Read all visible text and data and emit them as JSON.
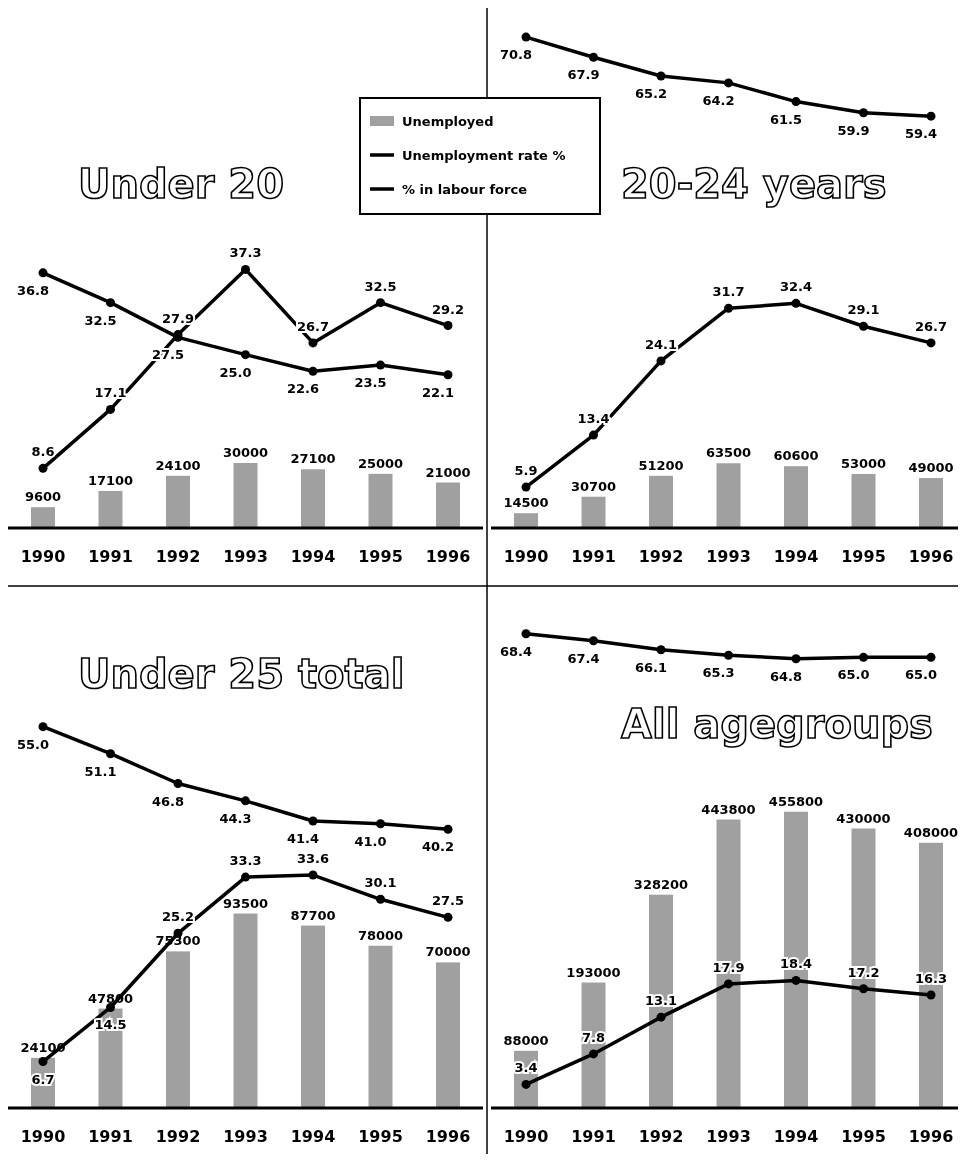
{
  "chart_data": [
    {
      "type": "bar",
      "title": "Under 20",
      "categories": [
        "1990",
        "1991",
        "1992",
        "1993",
        "1994",
        "1995",
        "1996"
      ],
      "ylim": [
        0,
        75
      ],
      "y2lim": [
        0,
        240000
      ],
      "tick_labels": "x",
      "data_labels": true,
      "legend": "top right",
      "series": [
        {
          "name": "Unemployed",
          "axis": "y2",
          "color": "#a0a0a0",
          "values": [
            9600,
            17100,
            24100,
            30000,
            27100,
            25000,
            21000
          ]
        },
        {
          "name": "Unemployment rate %",
          "type": "line",
          "color": "#000000",
          "marker": "circle",
          "values": [
            8.6,
            17.1,
            27.9,
            37.3,
            26.7,
            32.5,
            29.2
          ],
          "value_labels": [
            "8.6",
            "17.1",
            "27.9",
            "37.3",
            "26.7",
            "32.5",
            "29.2"
          ]
        },
        {
          "name": "% in labour force",
          "type": "line",
          "color": "#000000",
          "marker": "circle",
          "values": [
            36.8,
            32.5,
            27.5,
            25.0,
            22.6,
            23.5,
            22.1
          ],
          "value_labels": [
            "36.8",
            "32.5",
            "27.5",
            "25.0",
            "22.6",
            "23.5",
            "22.1"
          ]
        }
      ]
    },
    {
      "type": "bar",
      "title": "20-24 years",
      "categories": [
        "1990",
        "1991",
        "1992",
        "1993",
        "1994",
        "1995",
        "1996"
      ],
      "ylim": [
        0,
        75
      ],
      "y2lim": [
        0,
        510000
      ],
      "tick_labels": "x",
      "data_labels": true,
      "series": [
        {
          "axis": "y2",
          "color": "#a0a0a0",
          "values": [
            14500,
            30700,
            51200,
            63500,
            60600,
            53000,
            49000
          ]
        },
        {
          "type": "line",
          "color": "#000000",
          "marker": "circle",
          "values": [
            5.9,
            13.4,
            24.1,
            31.7,
            32.4,
            29.1,
            26.7
          ],
          "value_labels": [
            "5.9",
            "13.4",
            "24.1",
            "31.7",
            "32.4",
            "29.1",
            "26.7"
          ]
        },
        {
          "type": "line",
          "color": "#000000",
          "marker": "circle",
          "values": [
            70.8,
            67.9,
            65.2,
            64.2,
            61.5,
            59.9,
            59.4
          ],
          "value_labels": [
            "70.8",
            "67.9",
            "65.2",
            "64.2",
            "61.5",
            "59.9",
            "59.4"
          ]
        }
      ]
    },
    {
      "type": "bar",
      "title": "Under 25 total",
      "categories": [
        "1990",
        "1991",
        "1992",
        "1993",
        "1994",
        "1995",
        "1996"
      ],
      "ylim": [
        0,
        75
      ],
      "y2lim": [
        0,
        250000
      ],
      "tick_labels": "x",
      "data_labels": true,
      "series": [
        {
          "axis": "y2",
          "color": "#a0a0a0",
          "values": [
            24100,
            47800,
            75300,
            93500,
            87700,
            78000,
            70000
          ]
        },
        {
          "type": "line",
          "color": "#000000",
          "marker": "circle",
          "values": [
            6.7,
            14.5,
            25.2,
            33.3,
            33.6,
            30.1,
            27.5
          ],
          "value_labels": [
            "6.7",
            "14.5",
            "25.2",
            "33.3",
            "33.6",
            "30.1",
            "27.5"
          ]
        },
        {
          "type": "line",
          "color": "#000000",
          "marker": "circle",
          "values": [
            55.0,
            51.1,
            46.8,
            44.3,
            41.4,
            41.0,
            40.2
          ],
          "value_labels": [
            "55.0",
            "51.1",
            "46.8",
            "44.3",
            "41.4",
            "41.0",
            "40.2"
          ]
        }
      ]
    },
    {
      "type": "bar",
      "title": "All agegroups",
      "categories": [
        "1990",
        "1991",
        "1992",
        "1993",
        "1994",
        "1995",
        "1996"
      ],
      "ylim": [
        0,
        75
      ],
      "y2lim": [
        0,
        800000
      ],
      "tick_labels": "x",
      "data_labels": true,
      "series": [
        {
          "axis": "y2",
          "color": "#a0a0a0",
          "values": [
            88000,
            193000,
            328200,
            443800,
            455800,
            430000,
            408000
          ]
        },
        {
          "type": "line",
          "color": "#000000",
          "marker": "circle",
          "values": [
            3.4,
            7.8,
            13.1,
            17.9,
            18.4,
            17.2,
            16.3
          ],
          "value_labels": [
            "3.4",
            "7.8",
            "13.1",
            "17.9",
            "18.4",
            "17.2",
            "16.3"
          ]
        },
        {
          "type": "line",
          "color": "#000000",
          "marker": "circle",
          "values": [
            68.4,
            67.4,
            66.1,
            65.3,
            64.8,
            65.0,
            65.0
          ],
          "value_labels": [
            "68.4",
            "67.4",
            "66.1",
            "65.3",
            "64.8",
            "65.0",
            "65.0"
          ]
        }
      ]
    }
  ]
}
